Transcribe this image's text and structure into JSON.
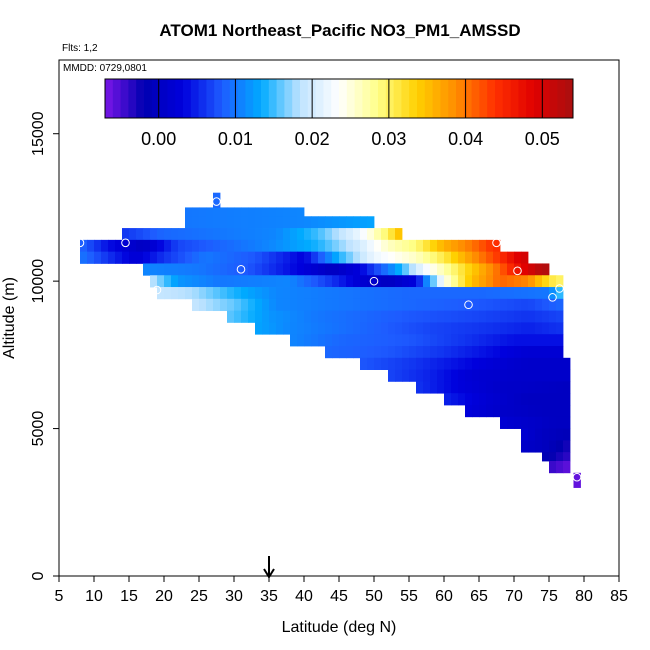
{
  "chart_data": {
    "type": "heatmap",
    "title": "ATOM1 Northeast_Pacific NO3_PM1_AMSSD",
    "flights_note": "Flts: 1,2",
    "date_note": "MMDD: 0729,0801",
    "xlabel": "Latitude (deg N)",
    "ylabel": "Altitude (m)",
    "xlim": [
      5,
      85
    ],
    "ylim": [
      0,
      17500
    ],
    "x_ticks": [
      5,
      10,
      15,
      20,
      25,
      30,
      35,
      40,
      45,
      50,
      55,
      60,
      65,
      70,
      75,
      80,
      85
    ],
    "y_ticks": [
      0,
      5000,
      10000,
      15000
    ],
    "colorbar": {
      "range": [
        -0.007,
        0.054
      ],
      "ticks": [
        0.0,
        0.01,
        0.02,
        0.03,
        0.04,
        0.05
      ],
      "tick_labels": [
        "0.00",
        "0.01",
        "0.02",
        "0.03",
        "0.04",
        "0.05"
      ],
      "colors": [
        "#7a16e8",
        "#0000b0",
        "#0000dd",
        "#1e5cff",
        "#00aaff",
        "#bfe3ff",
        "#ffffff",
        "#ffff88",
        "#ffd000",
        "#ff8c00",
        "#ff3000",
        "#e00000",
        "#a81010"
      ]
    },
    "arrow_marker_latitude": 35,
    "bands": [
      {
        "y0": 12200,
        "y1": 12500,
        "x0": 23,
        "x1": 40,
        "stops": [
          [
            23,
            0.01
          ],
          [
            40,
            0.011
          ]
        ]
      },
      {
        "y0": 11800,
        "y1": 12200,
        "x0": 23,
        "x1": 50,
        "stops": [
          [
            23,
            0.01
          ],
          [
            40,
            0.011
          ],
          [
            50,
            0.013
          ]
        ]
      },
      {
        "y0": 11400,
        "y1": 11800,
        "x0": 14,
        "x1": 54,
        "stops": [
          [
            14,
            0.006
          ],
          [
            20,
            0.009
          ],
          [
            36,
            0.011
          ],
          [
            42,
            0.015
          ],
          [
            48,
            0.022
          ],
          [
            52,
            0.03
          ],
          [
            54,
            0.036
          ]
        ]
      },
      {
        "y0": 11000,
        "y1": 11400,
        "x0": 8,
        "x1": 68,
        "stops": [
          [
            8,
            0.009
          ],
          [
            12,
            0.004
          ],
          [
            17,
            0.0
          ],
          [
            22,
            0.007
          ],
          [
            35,
            0.011
          ],
          [
            42,
            0.014
          ],
          [
            48,
            0.02
          ],
          [
            52,
            0.026
          ],
          [
            56,
            0.029
          ],
          [
            60,
            0.036
          ],
          [
            64,
            0.04
          ],
          [
            67,
            0.044
          ]
        ]
      },
      {
        "y0": 10600,
        "y1": 11000,
        "x0": 8,
        "x1": 72,
        "stops": [
          [
            8,
            0.01
          ],
          [
            12,
            0.006
          ],
          [
            16,
            0.002
          ],
          [
            20,
            0.006
          ],
          [
            26,
            0.01
          ],
          [
            33,
            0.008
          ],
          [
            40,
            0.003
          ],
          [
            45,
            0.014
          ],
          [
            50,
            0.022
          ],
          [
            56,
            0.026
          ],
          [
            60,
            0.031
          ],
          [
            64,
            0.038
          ],
          [
            68,
            0.044
          ],
          [
            71,
            0.05
          ]
        ]
      },
      {
        "y0": 10200,
        "y1": 10600,
        "x0": 17,
        "x1": 75,
        "stops": [
          [
            17,
            0.011
          ],
          [
            25,
            0.01
          ],
          [
            32,
            0.008
          ],
          [
            38,
            0.004
          ],
          [
            44,
            0.0
          ],
          [
            48,
            0.003
          ],
          [
            53,
            0.012
          ],
          [
            57,
            0.022
          ],
          [
            60,
            0.027
          ],
          [
            64,
            0.034
          ],
          [
            68,
            0.041
          ],
          [
            71,
            0.048
          ],
          [
            74,
            0.053
          ]
        ]
      },
      {
        "y0": 9800,
        "y1": 10200,
        "x0": 18,
        "x1": 77,
        "stops": [
          [
            18,
            0.019
          ],
          [
            22,
            0.012
          ],
          [
            28,
            0.01
          ],
          [
            38,
            0.011
          ],
          [
            44,
            0.006
          ],
          [
            48,
            0.002
          ],
          [
            52,
            0.0
          ],
          [
            56,
            0.003
          ],
          [
            60,
            0.024
          ],
          [
            64,
            0.035
          ],
          [
            68,
            0.041
          ],
          [
            72,
            0.039
          ],
          [
            74,
            0.034
          ],
          [
            76,
            0.03
          ]
        ]
      },
      {
        "y0": 9400,
        "y1": 9800,
        "x0": 19,
        "x1": 77,
        "stops": [
          [
            19,
            0.019
          ],
          [
            24,
            0.018
          ],
          [
            30,
            0.014
          ],
          [
            36,
            0.011
          ],
          [
            45,
            0.01
          ],
          [
            55,
            0.009
          ],
          [
            65,
            0.009
          ],
          [
            75,
            0.01
          ],
          [
            77,
            0.016
          ]
        ]
      },
      {
        "y0": 9000,
        "y1": 9400,
        "x0": 24,
        "x1": 77,
        "stops": [
          [
            24,
            0.019
          ],
          [
            30,
            0.016
          ],
          [
            36,
            0.011
          ],
          [
            45,
            0.01
          ],
          [
            55,
            0.009
          ],
          [
            65,
            0.008
          ],
          [
            72,
            0.007
          ],
          [
            77,
            0.009
          ]
        ]
      },
      {
        "y0": 8600,
        "y1": 9000,
        "x0": 29,
        "x1": 77,
        "stops": [
          [
            29,
            0.016
          ],
          [
            35,
            0.012
          ],
          [
            42,
            0.01
          ],
          [
            55,
            0.008
          ],
          [
            65,
            0.007
          ],
          [
            72,
            0.006
          ],
          [
            77,
            0.007
          ]
        ]
      },
      {
        "y0": 8200,
        "y1": 8600,
        "x0": 33,
        "x1": 77,
        "stops": [
          [
            33,
            0.013
          ],
          [
            38,
            0.011
          ],
          [
            48,
            0.009
          ],
          [
            58,
            0.007
          ],
          [
            66,
            0.006
          ],
          [
            72,
            0.005
          ],
          [
            77,
            0.006
          ]
        ]
      },
      {
        "y0": 7800,
        "y1": 8200,
        "x0": 38,
        "x1": 77,
        "stops": [
          [
            38,
            0.011
          ],
          [
            45,
            0.009
          ],
          [
            55,
            0.008
          ],
          [
            63,
            0.006
          ],
          [
            70,
            0.004
          ],
          [
            77,
            0.004
          ]
        ]
      },
      {
        "y0": 7400,
        "y1": 7800,
        "x0": 43,
        "x1": 77,
        "stops": [
          [
            43,
            0.009
          ],
          [
            52,
            0.008
          ],
          [
            60,
            0.006
          ],
          [
            66,
            0.004
          ],
          [
            72,
            0.002
          ],
          [
            77,
            0.002
          ]
        ]
      },
      {
        "y0": 7000,
        "y1": 7400,
        "x0": 48,
        "x1": 78,
        "stops": [
          [
            48,
            0.008
          ],
          [
            56,
            0.006
          ],
          [
            62,
            0.004
          ],
          [
            68,
            0.002
          ],
          [
            72,
            0.001
          ],
          [
            78,
            0.001
          ]
        ]
      },
      {
        "y0": 6600,
        "y1": 7000,
        "x0": 52,
        "x1": 78,
        "stops": [
          [
            52,
            0.007
          ],
          [
            58,
            0.005
          ],
          [
            64,
            0.002
          ],
          [
            70,
            0.001
          ],
          [
            78,
            0.001
          ]
        ]
      },
      {
        "y0": 6200,
        "y1": 6600,
        "x0": 56,
        "x1": 78,
        "stops": [
          [
            56,
            0.006
          ],
          [
            62,
            0.003
          ],
          [
            68,
            0.001
          ],
          [
            78,
            0.0
          ]
        ]
      },
      {
        "y0": 5800,
        "y1": 6200,
        "x0": 60,
        "x1": 78,
        "stops": [
          [
            60,
            0.005
          ],
          [
            66,
            0.002
          ],
          [
            72,
            0.0
          ],
          [
            78,
            0.0
          ]
        ]
      },
      {
        "y0": 5400,
        "y1": 5800,
        "x0": 63,
        "x1": 78,
        "stops": [
          [
            63,
            0.003
          ],
          [
            68,
            0.001
          ],
          [
            74,
            0.0
          ],
          [
            78,
            0.0
          ]
        ]
      },
      {
        "y0": 5000,
        "y1": 5400,
        "x0": 68,
        "x1": 78,
        "stops": [
          [
            68,
            0.002
          ],
          [
            72,
            0.001
          ],
          [
            76,
            0.0
          ],
          [
            78,
            0.0
          ]
        ]
      },
      {
        "y0": 4600,
        "y1": 5000,
        "x0": 71,
        "x1": 78,
        "stops": [
          [
            71,
            0.002
          ],
          [
            74,
            0.0
          ],
          [
            78,
            -0.001
          ]
        ]
      },
      {
        "y0": 4200,
        "y1": 4600,
        "x0": 71,
        "x1": 78,
        "stops": [
          [
            71,
            0.001
          ],
          [
            74,
            0.0
          ],
          [
            78,
            -0.003
          ]
        ]
      },
      {
        "y0": 3900,
        "y1": 4200,
        "x0": 74,
        "x1": 78,
        "stops": [
          [
            74,
            -0.001
          ],
          [
            78,
            -0.004
          ]
        ]
      },
      {
        "y0": 3500,
        "y1": 3900,
        "x0": 75,
        "x1": 78,
        "stops": [
          [
            75,
            -0.004
          ],
          [
            78,
            -0.006
          ]
        ]
      },
      {
        "y0": 3000,
        "y1": 3500,
        "x0": 78.5,
        "x1": 79.5,
        "stops": [
          [
            78.5,
            -0.006
          ],
          [
            79.5,
            -0.006
          ]
        ]
      },
      {
        "y0": 12500,
        "y1": 13000,
        "x0": 27,
        "x1": 28,
        "stops": [
          [
            27,
            0.009
          ],
          [
            28,
            0.009
          ]
        ]
      }
    ],
    "sample_points": [
      [
        8,
        11300
      ],
      [
        14.5,
        11300
      ],
      [
        19,
        9700
      ],
      [
        27.5,
        12700
      ],
      [
        31,
        10400
      ],
      [
        50,
        10000
      ],
      [
        63.5,
        9200
      ],
      [
        67.5,
        11300
      ],
      [
        70.5,
        10350
      ],
      [
        75.5,
        9450
      ],
      [
        76.5,
        9750
      ],
      [
        79,
        3350
      ]
    ]
  }
}
